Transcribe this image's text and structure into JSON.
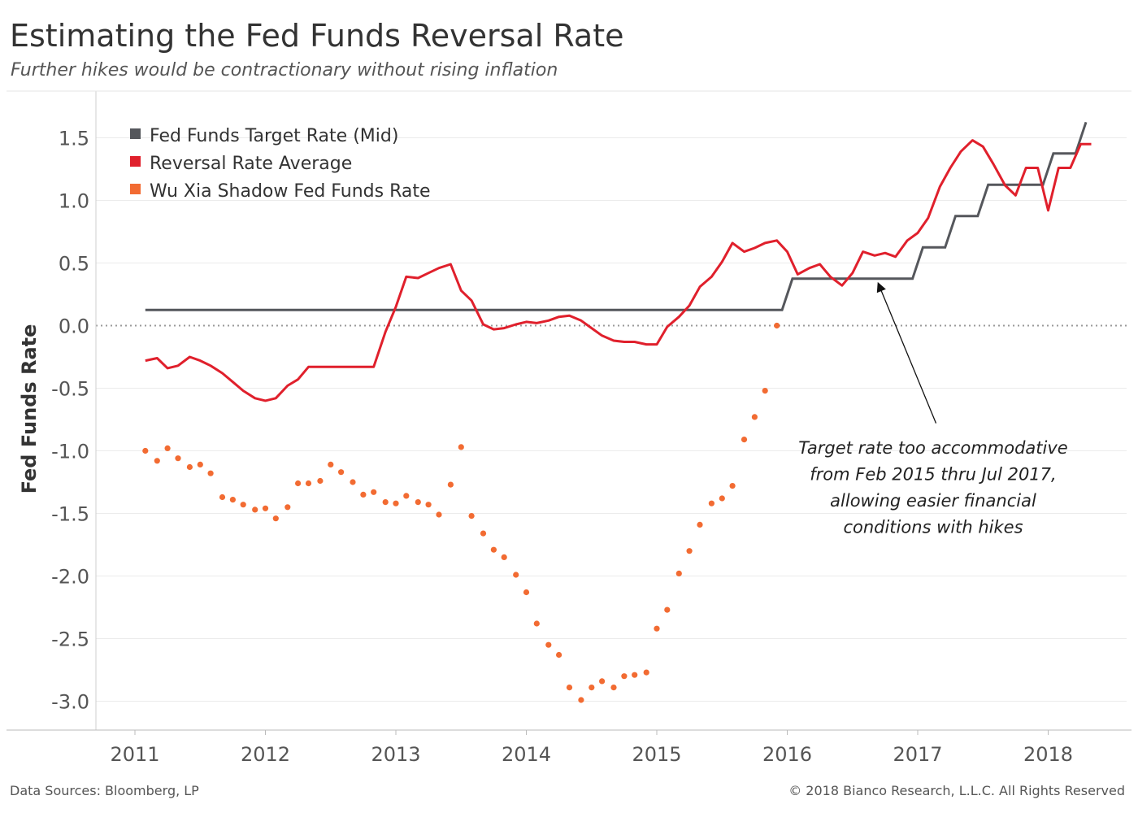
{
  "header": {
    "title": "Estimating the Fed Funds Reversal Rate",
    "subtitle": "Further hikes would be contractionary without rising inflation"
  },
  "footer": {
    "sources": "Data Sources: Bloomberg, LP",
    "copyright": "© 2018 Bianco Research, L.L.C. All Rights Reserved"
  },
  "colors": {
    "target": "#55575c",
    "reversal": "#e0202c",
    "shadow": "#f26b32",
    "zeroline": "#999999",
    "grid": "#ebebeb"
  },
  "chart_data": {
    "type": "line",
    "ylabel": "Fed Funds Rate",
    "ylim": [
      -3.25,
      1.75
    ],
    "xlim": [
      2010.97,
      2018.55
    ],
    "yticks": [
      1.5,
      1.0,
      0.5,
      0.0,
      -0.5,
      -1.0,
      -1.5,
      -2.0,
      -2.5,
      -3.0
    ],
    "ytick_labels": [
      "1.5",
      "1.0",
      "0.5",
      "0.0",
      "-0.5",
      "-1.0",
      "-1.5",
      "-2.0",
      "-2.5",
      "-3.0"
    ],
    "xticks": [
      2011,
      2012,
      2013,
      2014,
      2015,
      2016,
      2017,
      2018
    ],
    "xtick_labels": [
      "2011",
      "2012",
      "2013",
      "2014",
      "2015",
      "2016",
      "2017",
      "2018"
    ],
    "grid": true,
    "legend_position": "top-left",
    "series": [
      {
        "name": "Fed Funds Target Rate (Mid)",
        "kind": "step",
        "points": [
          [
            2011.08,
            0.125
          ],
          [
            2015.96,
            0.125
          ],
          [
            2016.04,
            0.375
          ],
          [
            2016.96,
            0.375
          ],
          [
            2017.04,
            0.625
          ],
          [
            2017.21,
            0.625
          ],
          [
            2017.29,
            0.875
          ],
          [
            2017.46,
            0.875
          ],
          [
            2017.54,
            1.125
          ],
          [
            2017.96,
            1.125
          ],
          [
            2018.04,
            1.375
          ],
          [
            2018.21,
            1.375
          ],
          [
            2018.29,
            1.625
          ]
        ]
      },
      {
        "name": "Reversal Rate Average",
        "kind": "line",
        "points": [
          [
            2011.08,
            -0.28
          ],
          [
            2011.17,
            -0.26
          ],
          [
            2011.25,
            -0.34
          ],
          [
            2011.33,
            -0.32
          ],
          [
            2011.42,
            -0.25
          ],
          [
            2011.5,
            -0.28
          ],
          [
            2011.58,
            -0.32
          ],
          [
            2011.67,
            -0.38
          ],
          [
            2011.75,
            -0.45
          ],
          [
            2011.83,
            -0.52
          ],
          [
            2011.92,
            -0.58
          ],
          [
            2012.0,
            -0.6
          ],
          [
            2012.08,
            -0.58
          ],
          [
            2012.17,
            -0.48
          ],
          [
            2012.25,
            -0.43
          ],
          [
            2012.33,
            -0.33
          ],
          [
            2012.42,
            -0.33
          ],
          [
            2012.5,
            -0.33
          ],
          [
            2012.58,
            -0.33
          ],
          [
            2012.67,
            -0.33
          ],
          [
            2012.75,
            -0.33
          ],
          [
            2012.83,
            -0.33
          ],
          [
            2012.92,
            -0.05
          ],
          [
            2013.0,
            0.15
          ],
          [
            2013.08,
            0.39
          ],
          [
            2013.17,
            0.38
          ],
          [
            2013.25,
            0.42
          ],
          [
            2013.33,
            0.46
          ],
          [
            2013.42,
            0.49
          ],
          [
            2013.5,
            0.28
          ],
          [
            2013.58,
            0.2
          ],
          [
            2013.67,
            0.01
          ],
          [
            2013.75,
            -0.03
          ],
          [
            2013.83,
            -0.02
          ],
          [
            2013.92,
            0.01
          ],
          [
            2014.0,
            0.03
          ],
          [
            2014.08,
            0.02
          ],
          [
            2014.17,
            0.04
          ],
          [
            2014.25,
            0.07
          ],
          [
            2014.33,
            0.08
          ],
          [
            2014.42,
            0.04
          ],
          [
            2014.5,
            -0.02
          ],
          [
            2014.58,
            -0.08
          ],
          [
            2014.67,
            -0.12
          ],
          [
            2014.75,
            -0.13
          ],
          [
            2014.83,
            -0.13
          ],
          [
            2014.92,
            -0.15
          ],
          [
            2015.0,
            -0.15
          ],
          [
            2015.08,
            -0.01
          ],
          [
            2015.17,
            0.07
          ],
          [
            2015.25,
            0.16
          ],
          [
            2015.33,
            0.31
          ],
          [
            2015.42,
            0.39
          ],
          [
            2015.5,
            0.51
          ],
          [
            2015.58,
            0.66
          ],
          [
            2015.67,
            0.59
          ],
          [
            2015.75,
            0.62
          ],
          [
            2015.83,
            0.66
          ],
          [
            2015.92,
            0.68
          ],
          [
            2016.0,
            0.59
          ],
          [
            2016.08,
            0.41
          ],
          [
            2016.17,
            0.46
          ],
          [
            2016.25,
            0.49
          ],
          [
            2016.33,
            0.39
          ],
          [
            2016.42,
            0.32
          ],
          [
            2016.5,
            0.42
          ],
          [
            2016.58,
            0.59
          ],
          [
            2016.67,
            0.56
          ],
          [
            2016.75,
            0.58
          ],
          [
            2016.83,
            0.55
          ],
          [
            2016.92,
            0.68
          ],
          [
            2017.0,
            0.74
          ],
          [
            2017.08,
            0.86
          ],
          [
            2017.17,
            1.11
          ],
          [
            2017.25,
            1.26
          ],
          [
            2017.33,
            1.39
          ],
          [
            2017.42,
            1.48
          ],
          [
            2017.5,
            1.43
          ],
          [
            2017.58,
            1.29
          ],
          [
            2017.67,
            1.12
          ],
          [
            2017.75,
            1.04
          ],
          [
            2017.83,
            1.26
          ],
          [
            2017.92,
            1.26
          ],
          [
            2018.0,
            0.92
          ],
          [
            2018.08,
            1.26
          ],
          [
            2018.17,
            1.26
          ],
          [
            2018.25,
            1.45
          ],
          [
            2018.33,
            1.45
          ]
        ]
      },
      {
        "name": "Wu Xia Shadow Fed Funds Rate",
        "kind": "scatter",
        "points": [
          [
            2011.08,
            -1.0
          ],
          [
            2011.17,
            -1.08
          ],
          [
            2011.25,
            -0.98
          ],
          [
            2011.33,
            -1.06
          ],
          [
            2011.42,
            -1.13
          ],
          [
            2011.5,
            -1.11
          ],
          [
            2011.58,
            -1.18
          ],
          [
            2011.67,
            -1.37
          ],
          [
            2011.75,
            -1.39
          ],
          [
            2011.83,
            -1.43
          ],
          [
            2011.92,
            -1.47
          ],
          [
            2012.0,
            -1.46
          ],
          [
            2012.08,
            -1.54
          ],
          [
            2012.17,
            -1.45
          ],
          [
            2012.25,
            -1.26
          ],
          [
            2012.33,
            -1.26
          ],
          [
            2012.42,
            -1.24
          ],
          [
            2012.5,
            -1.11
          ],
          [
            2012.58,
            -1.17
          ],
          [
            2012.67,
            -1.25
          ],
          [
            2012.75,
            -1.35
          ],
          [
            2012.83,
            -1.33
          ],
          [
            2012.92,
            -1.41
          ],
          [
            2013.0,
            -1.42
          ],
          [
            2013.08,
            -1.36
          ],
          [
            2013.17,
            -1.41
          ],
          [
            2013.25,
            -1.43
          ],
          [
            2013.33,
            -1.51
          ],
          [
            2013.42,
            -1.27
          ],
          [
            2013.5,
            -0.97
          ],
          [
            2013.58,
            -1.52
          ],
          [
            2013.67,
            -1.66
          ],
          [
            2013.75,
            -1.79
          ],
          [
            2013.83,
            -1.85
          ],
          [
            2013.92,
            -1.99
          ],
          [
            2014.0,
            -2.13
          ],
          [
            2014.08,
            -2.38
          ],
          [
            2014.17,
            -2.55
          ],
          [
            2014.25,
            -2.63
          ],
          [
            2014.33,
            -2.89
          ],
          [
            2014.42,
            -2.99
          ],
          [
            2014.5,
            -2.89
          ],
          [
            2014.58,
            -2.84
          ],
          [
            2014.67,
            -2.89
          ],
          [
            2014.75,
            -2.8
          ],
          [
            2014.83,
            -2.79
          ],
          [
            2014.92,
            -2.77
          ],
          [
            2015.0,
            -2.42
          ],
          [
            2015.08,
            -2.27
          ],
          [
            2015.17,
            -1.98
          ],
          [
            2015.25,
            -1.8
          ],
          [
            2015.33,
            -1.59
          ],
          [
            2015.42,
            -1.42
          ],
          [
            2015.5,
            -1.38
          ],
          [
            2015.58,
            -1.28
          ],
          [
            2015.67,
            -0.91
          ],
          [
            2015.75,
            -0.73
          ],
          [
            2015.83,
            -0.52
          ],
          [
            2015.92,
            0.0
          ]
        ]
      }
    ],
    "annotation": {
      "lines": [
        "Target rate too accommodative",
        "from Feb 2015 thru Jul 2017,",
        "allowing easier financial",
        "conditions with hikes"
      ],
      "arrow_target": [
        2016.7,
        0.33
      ],
      "arrow_tail": [
        2017.14,
        -0.78
      ]
    }
  }
}
